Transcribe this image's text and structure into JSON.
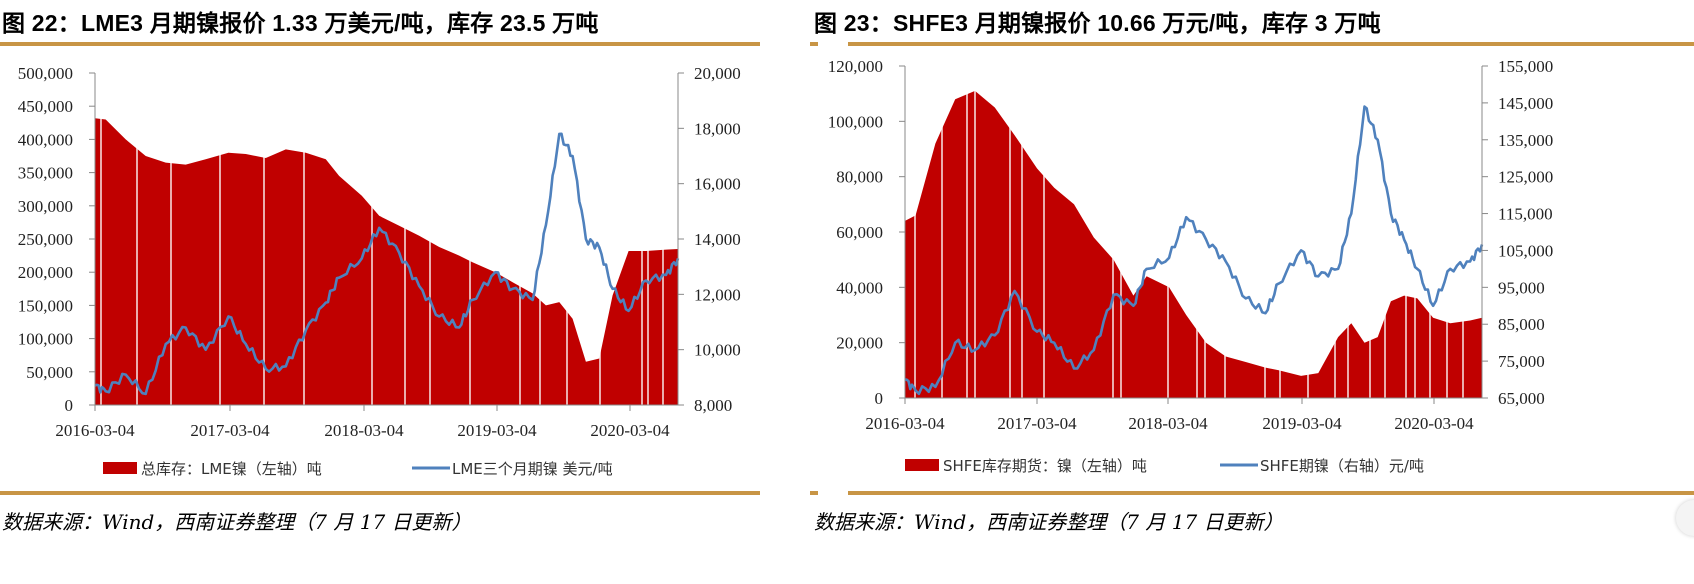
{
  "colors": {
    "inventory_fill": "#c00000",
    "price_line": "#4f81bd",
    "rule_gold": "#c89545",
    "axis": "#888888"
  },
  "left_panel": {
    "title": "图 22：LME3 月期镍报价 1.33 万美元/吨，库存 23.5 万吨",
    "source": "数据来源：Wind，西南证券整理（7 月 17 日更新）",
    "legend": {
      "series1": "总库存：LME镍（左轴）吨",
      "series2": "LME三个月期镍 美元/吨"
    }
  },
  "right_panel": {
    "title": "图 23：SHFE3 月期镍报价 10.66 万元/吨，库存 3 万吨",
    "source": "数据来源：Wind，西南证券整理（7 月 17 日更新）",
    "legend": {
      "series1": "SHFE库存期货：镍（左轴）吨",
      "series2": "SHFE期镍（右轴）元/吨"
    }
  },
  "chart_data": [
    {
      "type": "area+line",
      "title": "图 22：LME3 月期镍报价 1.33 万美元/吨，库存 23.5 万吨",
      "x_tick_labels": [
        "2016-03-04",
        "2017-03-04",
        "2018-03-04",
        "2019-03-04",
        "2020-03-04"
      ],
      "y_left": {
        "label": "吨",
        "range": [
          0,
          500000
        ],
        "ticks": [
          "0",
          "50,000",
          "100,000",
          "150,000",
          "200,000",
          "250,000",
          "300,000",
          "350,000",
          "400,000",
          "450,000",
          "500,000"
        ]
      },
      "y_right": {
        "label": "美元/吨",
        "range": [
          8000,
          20000
        ],
        "ticks": [
          "8,000",
          "10,000",
          "12,000",
          "14,000",
          "16,000",
          "18,000",
          "20,000"
        ]
      },
      "legend_position": "bottom",
      "x": [
        2016.17,
        2016.25,
        2016.4,
        2016.55,
        2016.7,
        2016.85,
        2017.0,
        2017.17,
        2017.3,
        2017.45,
        2017.6,
        2017.75,
        2017.9,
        2018.0,
        2018.17,
        2018.3,
        2018.45,
        2018.6,
        2018.75,
        2018.9,
        2019.0,
        2019.17,
        2019.3,
        2019.45,
        2019.55,
        2019.65,
        2019.75,
        2019.85,
        2019.95,
        2020.05,
        2020.17,
        2020.3,
        2020.45,
        2020.54
      ],
      "series": [
        {
          "name": "总库存：LME镍（左轴）吨",
          "axis": "left",
          "kind": "area",
          "values": [
            432000,
            430000,
            400000,
            375000,
            365000,
            362000,
            370000,
            380000,
            378000,
            372000,
            385000,
            380000,
            370000,
            345000,
            315000,
            285000,
            270000,
            255000,
            238000,
            225000,
            215000,
            200000,
            185000,
            168000,
            150000,
            155000,
            130000,
            65000,
            70000,
            165000,
            232000,
            232000,
            234000,
            235000
          ]
        },
        {
          "name": "LME三个月期镍 美元/吨",
          "axis": "right",
          "kind": "line",
          "values": [
            8700,
            8500,
            9100,
            8400,
            10200,
            10800,
            10000,
            11200,
            10200,
            9300,
            9400,
            10700,
            11700,
            12600,
            13300,
            14400,
            13500,
            12300,
            11200,
            10800,
            11800,
            12800,
            12200,
            11800,
            14500,
            17800,
            17000,
            14000,
            13700,
            12200,
            11400,
            12500,
            12700,
            13300
          ]
        }
      ]
    },
    {
      "type": "area+line",
      "title": "图 23：SHFE3 月期镍报价 10.66 万元/吨，库存 3 万吨",
      "x_tick_labels": [
        "2016-03-04",
        "2017-03-04",
        "2018-03-04",
        "2019-03-04",
        "2020-03-04"
      ],
      "y_left": {
        "label": "吨",
        "range": [
          0,
          120000
        ],
        "ticks": [
          "0",
          "20,000",
          "40,000",
          "60,000",
          "80,000",
          "100,000",
          "120,000"
        ]
      },
      "y_right": {
        "label": "元/吨",
        "range": [
          65000,
          155000
        ],
        "ticks": [
          "65,000",
          "75,000",
          "85,000",
          "95,000",
          "105,000",
          "115,000",
          "125,000",
          "135,000",
          "145,000",
          "155,000"
        ]
      },
      "legend_position": "bottom",
      "x": [
        2016.17,
        2016.25,
        2016.4,
        2016.55,
        2016.7,
        2016.85,
        2017.0,
        2017.17,
        2017.3,
        2017.45,
        2017.6,
        2017.75,
        2017.9,
        2018.0,
        2018.17,
        2018.3,
        2018.45,
        2018.6,
        2018.75,
        2018.9,
        2019.0,
        2019.17,
        2019.3,
        2019.45,
        2019.55,
        2019.65,
        2019.75,
        2019.85,
        2019.95,
        2020.05,
        2020.17,
        2020.3,
        2020.45,
        2020.54
      ],
      "series": [
        {
          "name": "SHFE库存期货：镍（左轴）吨",
          "axis": "left",
          "kind": "area",
          "values": [
            64000,
            66000,
            92000,
            108000,
            111000,
            105000,
            95000,
            83000,
            76000,
            70000,
            58000,
            50000,
            37000,
            44000,
            40000,
            30000,
            20000,
            15000,
            13000,
            11000,
            10000,
            8000,
            9000,
            22000,
            27000,
            20000,
            22000,
            35000,
            37000,
            36000,
            29000,
            27000,
            28000,
            29000
          ]
        },
        {
          "name": "SHFE期镍（右轴）元/吨",
          "axis": "right",
          "kind": "line",
          "values": [
            70000,
            67000,
            68000,
            80000,
            78000,
            82000,
            94000,
            83000,
            80000,
            73000,
            78000,
            93000,
            90000,
            100000,
            103000,
            114000,
            108000,
            102000,
            92000,
            88000,
            96000,
            105000,
            98000,
            100000,
            115000,
            144000,
            135000,
            115000,
            108000,
            100000,
            90000,
            100000,
            102000,
            106600
          ]
        }
      ]
    }
  ]
}
